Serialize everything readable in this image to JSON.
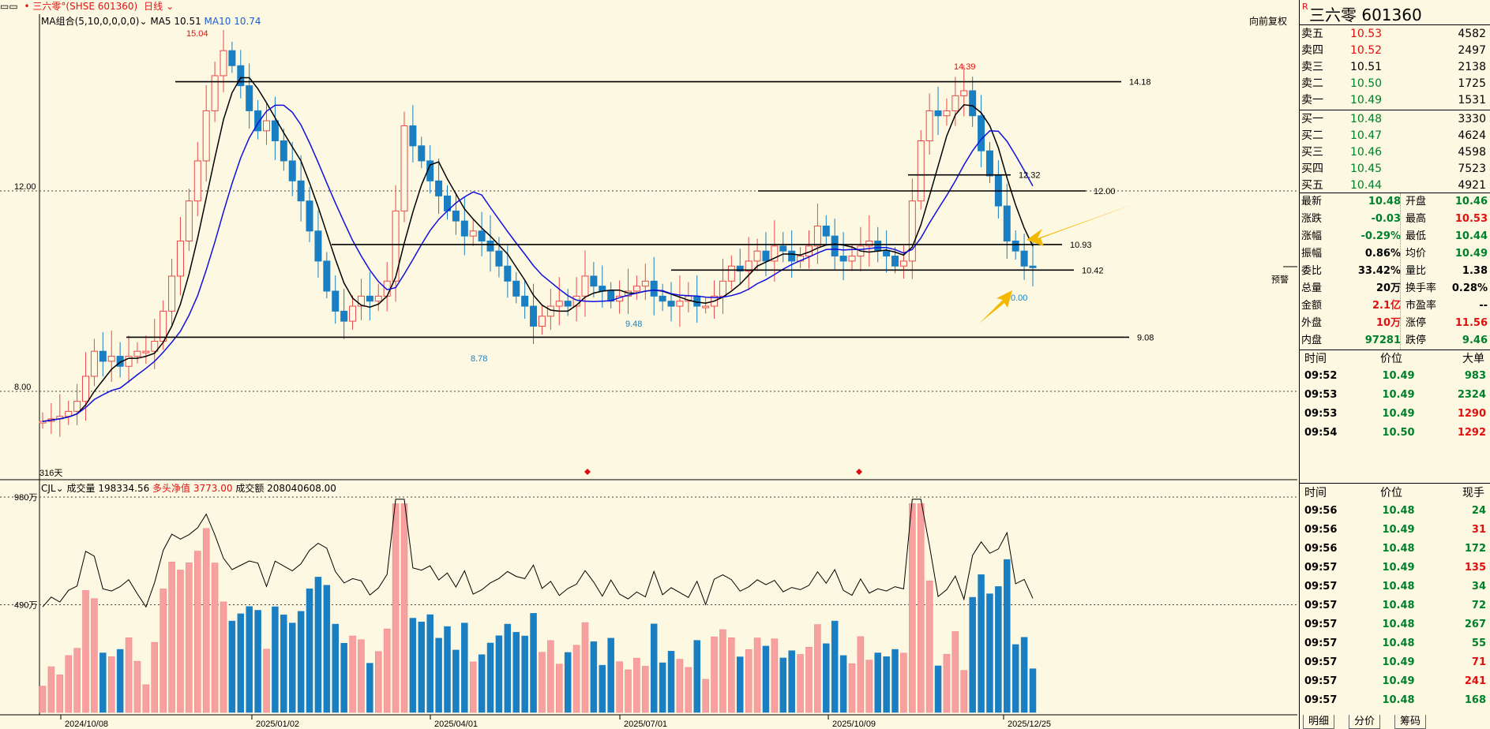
{
  "topbar": {
    "window_icon": "window-controls-icon",
    "stock_name": "• 三六零°(SHSE 601360)",
    "period": "日线",
    "ma_indicator": "MA组合(5,10,0,0,0,0)",
    "ma5_label": "MA5 10.51",
    "ma10_label": "MA10 10.74",
    "restore_label": "向前复权"
  },
  "price_axis": {
    "labels": [
      "12.00",
      "8.00"
    ],
    "values": [
      12.0,
      8.0
    ]
  },
  "annotations": {
    "high_label": "15.04",
    "high2_label": "14.39",
    "low_label": "8.78",
    "low2_label": "9.48",
    "last_label": "0.00",
    "warning_label": "预警",
    "days_label": "316天"
  },
  "support_lines": [
    {
      "label": "14.18",
      "value": 14.18
    },
    {
      "label": "12.32",
      "value": 12.32
    },
    {
      "label": "12.00",
      "value": 12.0
    },
    {
      "label": "10.93",
      "value": 10.93
    },
    {
      "label": "10.42",
      "value": 10.42
    },
    {
      "label": "9.08",
      "value": 9.08
    }
  ],
  "volume_panel": {
    "indicator": "CJL",
    "volume_label": "成交量 198334.56",
    "net_label": "多头净值 3773.00",
    "amount_label": "成交额 208040608.00",
    "axis_labels": [
      "980万",
      "490万"
    ]
  },
  "date_axis": [
    "2024/10/08",
    "2025/01/02",
    "2025/04/01",
    "2025/07/01",
    "2025/10/09",
    "2025/12/25"
  ],
  "side": {
    "badge": "R",
    "title": "三六零  601360",
    "asks": [
      {
        "label": "卖五",
        "price": "10.53",
        "vol": "4582",
        "color": "#e01010"
      },
      {
        "label": "卖四",
        "price": "10.52",
        "vol": "2497",
        "color": "#e01010"
      },
      {
        "label": "卖三",
        "price": "10.51",
        "vol": "2138",
        "color": "#000000"
      },
      {
        "label": "卖二",
        "price": "10.50",
        "vol": "1725",
        "color": "#00802b"
      },
      {
        "label": "卖一",
        "price": "10.49",
        "vol": "1531",
        "color": "#00802b"
      }
    ],
    "bids": [
      {
        "label": "买一",
        "price": "10.48",
        "vol": "3330",
        "color": "#00802b"
      },
      {
        "label": "买二",
        "price": "10.47",
        "vol": "4624",
        "color": "#00802b"
      },
      {
        "label": "买三",
        "price": "10.46",
        "vol": "4598",
        "color": "#00802b"
      },
      {
        "label": "买四",
        "price": "10.45",
        "vol": "7523",
        "color": "#00802b"
      },
      {
        "label": "买五",
        "price": "10.44",
        "vol": "4921",
        "color": "#00802b"
      }
    ],
    "quote": [
      {
        "l1": "最新",
        "v1": "10.48",
        "c1": "#00802b",
        "l2": "开盘",
        "v2": "10.46",
        "c2": "#00802b"
      },
      {
        "l1": "涨跌",
        "v1": "-0.03",
        "c1": "#00802b",
        "l2": "最高",
        "v2": "10.53",
        "c2": "#e01010"
      },
      {
        "l1": "涨幅",
        "v1": "-0.29%",
        "c1": "#00802b",
        "l2": "最低",
        "v2": "10.44",
        "c2": "#00802b"
      },
      {
        "l1": "振幅",
        "v1": "0.86%",
        "c1": "#000000",
        "l2": "均价",
        "v2": "10.49",
        "c2": "#00802b"
      },
      {
        "l1": "委比",
        "v1": "33.42%",
        "c1": "#000000",
        "l2": "量比",
        "v2": "1.38",
        "c2": "#000000"
      },
      {
        "l1": "总量",
        "v1": "20万",
        "c1": "#000000",
        "l2": "换手率",
        "v2": "0.28%",
        "c2": "#000000"
      },
      {
        "l1": "金额",
        "v1": "2.1亿",
        "c1": "#e01010",
        "l2": "市盈率",
        "v2": "--",
        "c2": "#000000"
      },
      {
        "l1": "外盘",
        "v1": "10万",
        "c1": "#e01010",
        "l2": "涨停",
        "v2": "11.56",
        "c2": "#e01010"
      },
      {
        "l1": "内盘",
        "v1": "97281",
        "c1": "#00802b",
        "l2": "跌停",
        "v2": "9.46",
        "c2": "#00802b"
      }
    ],
    "big_header": {
      "time": "时间",
      "price": "价位",
      "vol": "大单"
    },
    "big_orders": [
      {
        "time": "09:52",
        "price": "10.49",
        "vol": "983",
        "vc": "#00802b"
      },
      {
        "time": "09:53",
        "price": "10.49",
        "vol": "2324",
        "vc": "#00802b"
      },
      {
        "time": "09:53",
        "price": "10.49",
        "vol": "1290",
        "vc": "#e01010"
      },
      {
        "time": "09:54",
        "price": "10.50",
        "vol": "1292",
        "vc": "#e01010"
      }
    ],
    "tick_header": {
      "time": "时间",
      "price": "价位",
      "vol": "现手"
    },
    "ticks": [
      {
        "time": "09:56",
        "price": "10.48",
        "vol": "24",
        "vc": "#00802b"
      },
      {
        "time": "09:56",
        "price": "10.49",
        "vol": "31",
        "vc": "#e01010"
      },
      {
        "time": "09:56",
        "price": "10.48",
        "vol": "172",
        "vc": "#00802b"
      },
      {
        "time": "09:57",
        "price": "10.49",
        "vol": "135",
        "vc": "#e01010"
      },
      {
        "time": "09:57",
        "price": "10.48",
        "vol": "34",
        "vc": "#00802b"
      },
      {
        "time": "09:57",
        "price": "10.48",
        "vol": "72",
        "vc": "#00802b"
      },
      {
        "time": "09:57",
        "price": "10.48",
        "vol": "267",
        "vc": "#00802b"
      },
      {
        "time": "09:57",
        "price": "10.48",
        "vol": "55",
        "vc": "#00802b"
      },
      {
        "time": "09:57",
        "price": "10.49",
        "vol": "71",
        "vc": "#e01010"
      },
      {
        "time": "09:57",
        "price": "10.49",
        "vol": "241",
        "vc": "#e01010"
      },
      {
        "time": "09:57",
        "price": "10.48",
        "vol": "168",
        "vc": "#00802b"
      }
    ],
    "tabs": [
      "明细",
      "分价",
      "筹码"
    ]
  },
  "chart_data": {
    "type": "candlestick",
    "price_range": [
      7.0,
      16.0
    ],
    "support_lines": [
      14.18,
      12.32,
      12.0,
      10.93,
      10.42,
      9.08
    ],
    "colors": {
      "up": "#e84a4a",
      "down": "#1a7fc2",
      "ma5": "#000000",
      "ma10": "#1010e0"
    },
    "closes": [
      7.4,
      7.45,
      7.5,
      7.6,
      7.8,
      8.3,
      8.8,
      8.6,
      8.7,
      8.5,
      8.7,
      8.8,
      8.8,
      9.0,
      9.6,
      10.3,
      11.0,
      11.8,
      12.6,
      13.6,
      14.3,
      14.8,
      14.5,
      14.1,
      13.6,
      13.2,
      13.4,
      13.0,
      12.6,
      12.2,
      11.8,
      11.2,
      10.6,
      10.0,
      9.6,
      9.4,
      9.7,
      9.9,
      9.8,
      9.9,
      10.2,
      11.6,
      13.3,
      12.9,
      12.6,
      12.2,
      11.9,
      11.6,
      11.4,
      11.1,
      11.2,
      11.0,
      10.8,
      10.5,
      10.2,
      9.9,
      9.7,
      9.3,
      9.5,
      9.7,
      9.8,
      9.7,
      9.9,
      10.3,
      10.1,
      10.0,
      9.8,
      9.9,
      10.0,
      10.1,
      10.2,
      9.9,
      9.8,
      9.7,
      9.8,
      9.9,
      9.7,
      9.7,
      9.9,
      10.2,
      10.5,
      10.4,
      10.6,
      10.8,
      10.6,
      10.9,
      10.8,
      10.6,
      10.7,
      10.9,
      11.3,
      11.1,
      10.7,
      10.6,
      10.7,
      10.9,
      11.0,
      10.8,
      10.7,
      10.5,
      10.6,
      11.8,
      13.0,
      13.6,
      13.5,
      13.6,
      13.9,
      14.0,
      13.5,
      12.8,
      12.3,
      11.7,
      11.0,
      10.8,
      10.5,
      10.48
    ],
    "volume_axis": {
      "max": 980,
      "mid": 490,
      "unit": "万"
    }
  }
}
